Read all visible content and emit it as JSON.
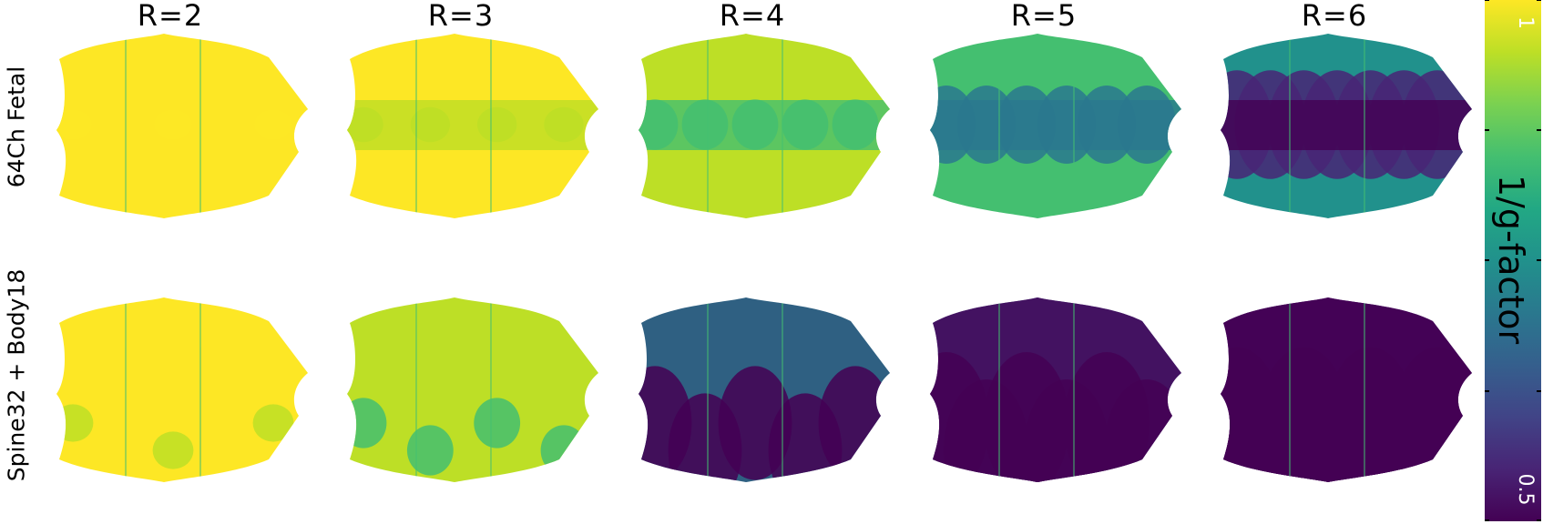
{
  "chart_data": {
    "type": "heatmap",
    "colormap": "viridis",
    "columns": [
      "R=2",
      "R=3",
      "R=4",
      "R=5",
      "R=6"
    ],
    "rows": [
      "64Ch Fetal",
      "Spine32 + Body18"
    ],
    "colorbar": {
      "label": "1/g-factor",
      "min": 0.5,
      "max": 1,
      "tick_labels": [
        "1",
        "0.5"
      ]
    },
    "panel_levels": [
      [
        0.99,
        0.97,
        0.91,
        0.8,
        0.68
      ],
      [
        0.96,
        0.91,
        0.66,
        0.55,
        0.51
      ]
    ]
  }
}
